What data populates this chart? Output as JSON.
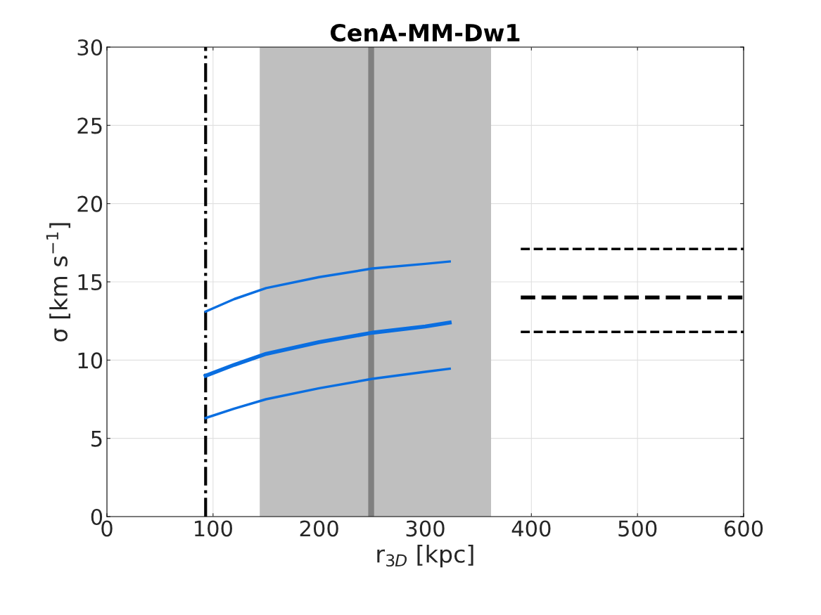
{
  "chart_data": {
    "type": "line",
    "title": "CenA-MM-Dw1",
    "xlabel": "r$_{3D}$ [kpc]",
    "ylabel": "σ [km s$^{−1}$]",
    "xlim": [
      0,
      600
    ],
    "ylim": [
      0,
      30
    ],
    "xticks": [
      0,
      100,
      200,
      300,
      400,
      500,
      600
    ],
    "yticks": [
      0,
      5,
      10,
      15,
      20,
      25,
      30
    ],
    "grid": true,
    "legend": false,
    "series": [
      {
        "color": "#0a6ee0",
        "line_style": "solid",
        "x": [
          93,
          120,
          150,
          200,
          250,
          300,
          323
        ],
        "values": [
          13.1,
          13.9,
          14.6,
          15.3,
          15.85,
          16.15,
          16.3
        ]
      },
      {
        "color": "#0a6ee0",
        "line_style": "solid",
        "x": [
          93,
          120,
          150,
          200,
          250,
          300,
          323
        ],
        "values": [
          9.0,
          9.7,
          10.4,
          11.15,
          11.75,
          12.15,
          12.4
        ]
      },
      {
        "color": "#0a6ee0",
        "line_style": "solid",
        "x": [
          93,
          120,
          150,
          200,
          250,
          300,
          323
        ],
        "values": [
          6.3,
          6.9,
          7.5,
          8.2,
          8.8,
          9.25,
          9.45
        ]
      },
      {
        "color": "#000000",
        "line_style": "dashed",
        "x": [
          390,
          600
        ],
        "values": [
          17.1,
          17.1
        ]
      },
      {
        "color": "#000000",
        "line_style": "dashed",
        "x": [
          390,
          600
        ],
        "values": [
          14.0,
          14.0
        ]
      },
      {
        "color": "#000000",
        "line_style": "dashed",
        "x": [
          390,
          600
        ],
        "values": [
          11.8,
          11.8
        ]
      }
    ],
    "bands": [
      {
        "axis": "x",
        "from": 144,
        "to": 362,
        "color": "#bfbfbf"
      }
    ],
    "ref_lines": [
      {
        "axis": "x",
        "value": 249,
        "color": "#808080",
        "line_style": "solid"
      },
      {
        "axis": "x",
        "value": 93,
        "color": "#000000",
        "line_style": "dashdot"
      }
    ]
  }
}
